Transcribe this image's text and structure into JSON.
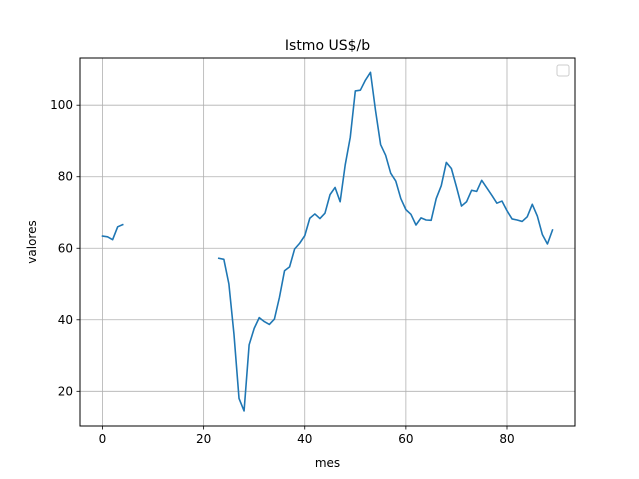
{
  "chart_data": {
    "type": "line",
    "title": "Istmo US$/b",
    "xlabel": "mes",
    "ylabel": "valores",
    "xlim": [
      -4.45,
      93.45
    ],
    "ylim": [
      10.3,
      113.2
    ],
    "xticks": [
      0,
      20,
      40,
      60,
      80
    ],
    "yticks": [
      20,
      40,
      60,
      80,
      100
    ],
    "grid": true,
    "legend": "top-right, empty",
    "series_color": "#1f77b4",
    "series": [
      {
        "points": [
          [
            0,
            63.4
          ],
          [
            1,
            63.2
          ],
          [
            2,
            62.4
          ],
          [
            3,
            66.0
          ],
          [
            4,
            66.6
          ],
          [
            5,
            null
          ],
          [
            22,
            null
          ],
          [
            23,
            57.2
          ],
          [
            24,
            56.9
          ],
          [
            25,
            50.0
          ],
          [
            26,
            36.0
          ],
          [
            27,
            18.0
          ],
          [
            28,
            14.5
          ],
          [
            29,
            33.0
          ],
          [
            30,
            37.6
          ],
          [
            31,
            40.6
          ],
          [
            32,
            39.5
          ],
          [
            33,
            38.7
          ],
          [
            34,
            40.2
          ],
          [
            35,
            46.3
          ],
          [
            36,
            53.7
          ],
          [
            37,
            54.8
          ],
          [
            38,
            59.8
          ],
          [
            39,
            61.4
          ],
          [
            40,
            63.5
          ],
          [
            41,
            68.4
          ],
          [
            42,
            69.6
          ],
          [
            43,
            68.3
          ],
          [
            44,
            69.8
          ],
          [
            45,
            75.0
          ],
          [
            46,
            77.0
          ],
          [
            47,
            73.0
          ],
          [
            48,
            83.3
          ],
          [
            49,
            91.0
          ],
          [
            50,
            104.0
          ],
          [
            51,
            104.2
          ],
          [
            52,
            107.0
          ],
          [
            53,
            109.2
          ],
          [
            54,
            98.5
          ],
          [
            55,
            89.0
          ],
          [
            56,
            86.0
          ],
          [
            57,
            81.0
          ],
          [
            58,
            78.8
          ],
          [
            59,
            73.9
          ],
          [
            60,
            70.8
          ],
          [
            61,
            69.5
          ],
          [
            62,
            66.5
          ],
          [
            63,
            68.5
          ],
          [
            64,
            67.9
          ],
          [
            65,
            67.8
          ],
          [
            66,
            73.9
          ],
          [
            67,
            77.5
          ],
          [
            68,
            84.0
          ],
          [
            69,
            82.3
          ],
          [
            70,
            77.2
          ],
          [
            71,
            71.8
          ],
          [
            72,
            73.0
          ],
          [
            73,
            76.2
          ],
          [
            74,
            75.9
          ],
          [
            75,
            79.0
          ],
          [
            76,
            76.9
          ],
          [
            77,
            74.8
          ],
          [
            78,
            72.6
          ],
          [
            79,
            73.2
          ],
          [
            80,
            70.5
          ],
          [
            81,
            68.2
          ],
          [
            82,
            67.9
          ],
          [
            83,
            67.5
          ],
          [
            84,
            68.8
          ],
          [
            85,
            72.3
          ],
          [
            86,
            69.0
          ],
          [
            87,
            63.8
          ],
          [
            88,
            61.2
          ],
          [
            89,
            65.1
          ]
        ]
      }
    ]
  }
}
